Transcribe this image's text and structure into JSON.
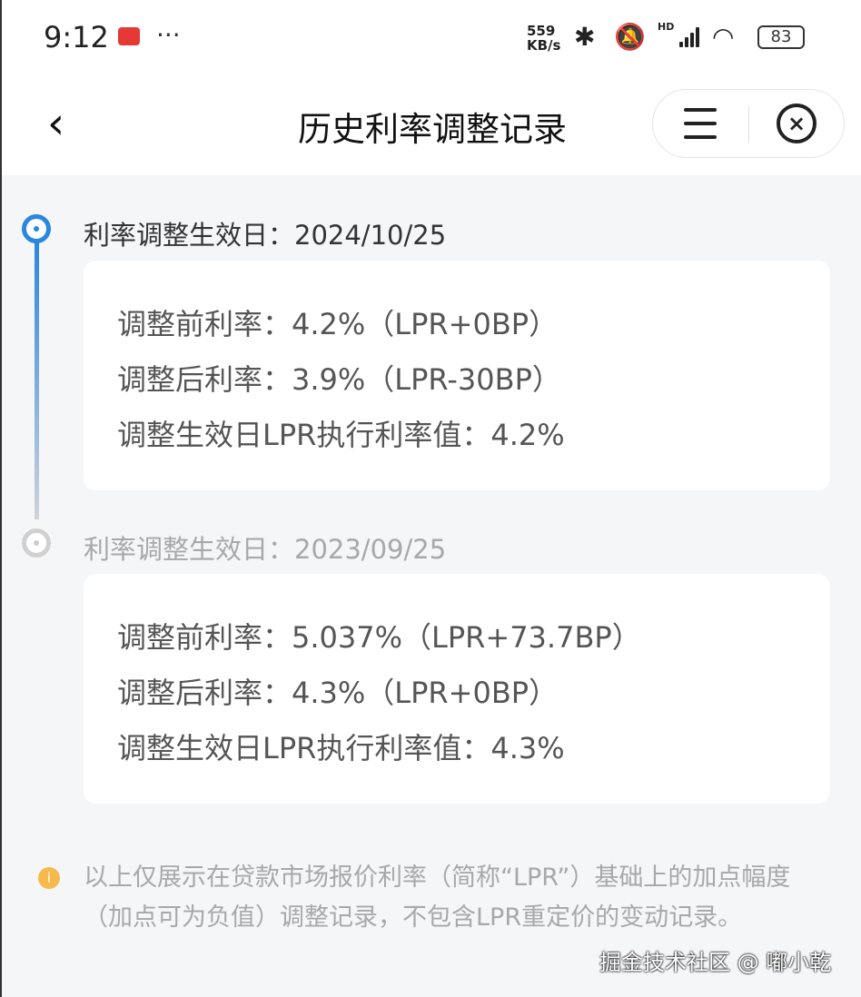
{
  "status_bar": {
    "time": "9:12",
    "more": "···",
    "app_icon": "app-notification-icon",
    "speed_value": "559",
    "speed_unit": "KB/s",
    "icons": [
      "bluetooth-icon",
      "mute-icon",
      "signal-icon",
      "wifi-icon"
    ],
    "hd": "HD",
    "battery": "83"
  },
  "nav": {
    "title": "历史利率调整记录",
    "back_icon": "chevron-left-icon",
    "menu_icon": "menu-icon",
    "close_icon": "close-circle-icon",
    "close_glyph": "×"
  },
  "records": [
    {
      "date_label": "利率调整生效日：2024/10/25",
      "active": true,
      "lines": [
        "调整前利率：4.2%（LPR+0BP）",
        "调整后利率：3.9%（LPR-30BP）",
        "调整生效日LPR执行利率值：4.2%"
      ]
    },
    {
      "date_label": "利率调整生效日：2023/09/25",
      "active": false,
      "lines": [
        "调整前利率：5.037%（LPR+73.7BP）",
        "调整后利率：4.3%（LPR+0BP）",
        "调整生效日LPR执行利率值：4.3%"
      ]
    }
  ],
  "note": {
    "icon": "info-icon",
    "glyph": "i",
    "text": "以上仅展示在贷款市场报价利率（简称“LPR”）基础上的加点幅度（加点可为负值）调整记录，不包含LPR重定价的变动记录。"
  },
  "watermark": "掘金技术社区 @ 嘟小乾",
  "colors": {
    "accent": "#2b86e0",
    "inactive": "#cccccc",
    "info": "#f6b94c",
    "background": "#f5f6f8"
  }
}
